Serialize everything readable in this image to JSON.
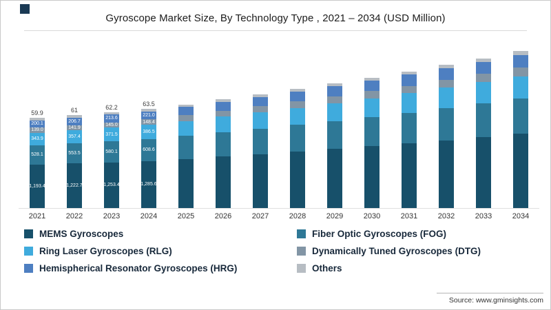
{
  "title": "Gyroscope Market Size, By Technology Type , 2021 – 2034 (USD Million)",
  "source": {
    "text": "Source: www.gminsights.com"
  },
  "chart_data": {
    "type": "bar",
    "stacked": true,
    "title": "Gyroscope Market Size, By Technology Type , 2021 – 2034 (USD Million)",
    "unit": "USD Million",
    "legend_position": "bottom",
    "grid": false,
    "ylim": [
      0,
      4500
    ],
    "note": "Only 2021-2024 bars carry data labels in the source image; 2025-2034 values are estimated from bar heights. The small value above each labeled bar is the 'Others' segment value.",
    "categories": [
      "2021",
      "2022",
      "2023",
      "2024",
      "2025",
      "2026",
      "2027",
      "2028",
      "2029",
      "2030",
      "2031",
      "2032",
      "2033",
      "2034"
    ],
    "series": [
      {
        "name": "MEMS Gyroscopes",
        "color": "#17506a",
        "values": [
          1193.4,
          1222.7,
          1253.4,
          1285.6,
          1346.0,
          1409.2,
          1475.5,
          1544.8,
          1617.4,
          1693.4,
          1773.0,
          1856.4,
          1943.6,
          2035.0
        ],
        "labels": [
          "1,193.4",
          "1,222.7",
          "1,253.4",
          "1,285.6"
        ],
        "label_placement": "inside"
      },
      {
        "name": "Fiber Optic Gyroscopes (FOG)",
        "color": "#2e7896",
        "values": [
          528.1,
          553.5,
          580.1,
          608.6,
          637.2,
          667.2,
          698.5,
          731.3,
          765.7,
          801.7,
          839.4,
          878.8,
          920.1,
          963.4
        ],
        "labels": [
          "528.1",
          "553.5",
          "580.1",
          "608.6"
        ],
        "label_placement": "inside"
      },
      {
        "name": "Ring Laser Gyroscopes (RLG)",
        "color": "#3fabdd",
        "values": [
          343.9,
          357.4,
          371.5,
          386.5,
          404.7,
          423.7,
          443.6,
          464.4,
          486.3,
          509.1,
          533.0,
          558.1,
          584.3,
          611.8
        ],
        "labels": [
          "343.9",
          "357.4",
          "371.5",
          "386.5"
        ],
        "label_placement": "inside"
      },
      {
        "name": "Dynamically Tuned Gyroscopes (DTG)",
        "color": "#8295a5",
        "values": [
          139.0,
          141.9,
          145.0,
          148.4,
          155.4,
          162.7,
          170.3,
          178.3,
          186.7,
          195.5,
          204.7,
          214.3,
          224.4,
          234.9
        ],
        "labels": [
          "139.0",
          "141.9",
          "145.0",
          "148.4"
        ],
        "label_placement": "inside"
      },
      {
        "name": "Hemispherical Resonator Gyroscopes (HRG)",
        "color": "#4e7fc1",
        "values": [
          200.1,
          206.7,
          213.6,
          221.0,
          231.4,
          242.3,
          253.7,
          265.6,
          278.1,
          291.2,
          304.9,
          319.2,
          334.2,
          349.9
        ],
        "labels": [
          "200.1",
          "206.7",
          "213.6",
          "221.0"
        ],
        "label_placement": "inside"
      },
      {
        "name": "Others",
        "color": "#b7bdc3",
        "values": [
          59.9,
          61.0,
          62.2,
          63.5,
          66.5,
          69.6,
          72.9,
          76.3,
          79.9,
          83.7,
          87.6,
          91.7,
          96.0,
          100.5
        ],
        "labels": [
          "59.9",
          "61",
          "62.2",
          "63.5"
        ],
        "label_placement": "above"
      }
    ]
  },
  "legend": {
    "items": [
      {
        "label": "MEMS Gyroscopes",
        "color": "#17506a"
      },
      {
        "label": "Fiber Optic Gyroscopes (FOG)",
        "color": "#2e7896"
      },
      {
        "label": "Ring Laser Gyroscopes (RLG)",
        "color": "#3fabdd"
      },
      {
        "label": "Dynamically Tuned Gyroscopes (DTG)",
        "color": "#8295a5"
      },
      {
        "label": "Hemispherical Resonator Gyroscopes (HRG)",
        "color": "#4e7fc1"
      },
      {
        "label": "Others",
        "color": "#b7bdc3"
      }
    ]
  }
}
